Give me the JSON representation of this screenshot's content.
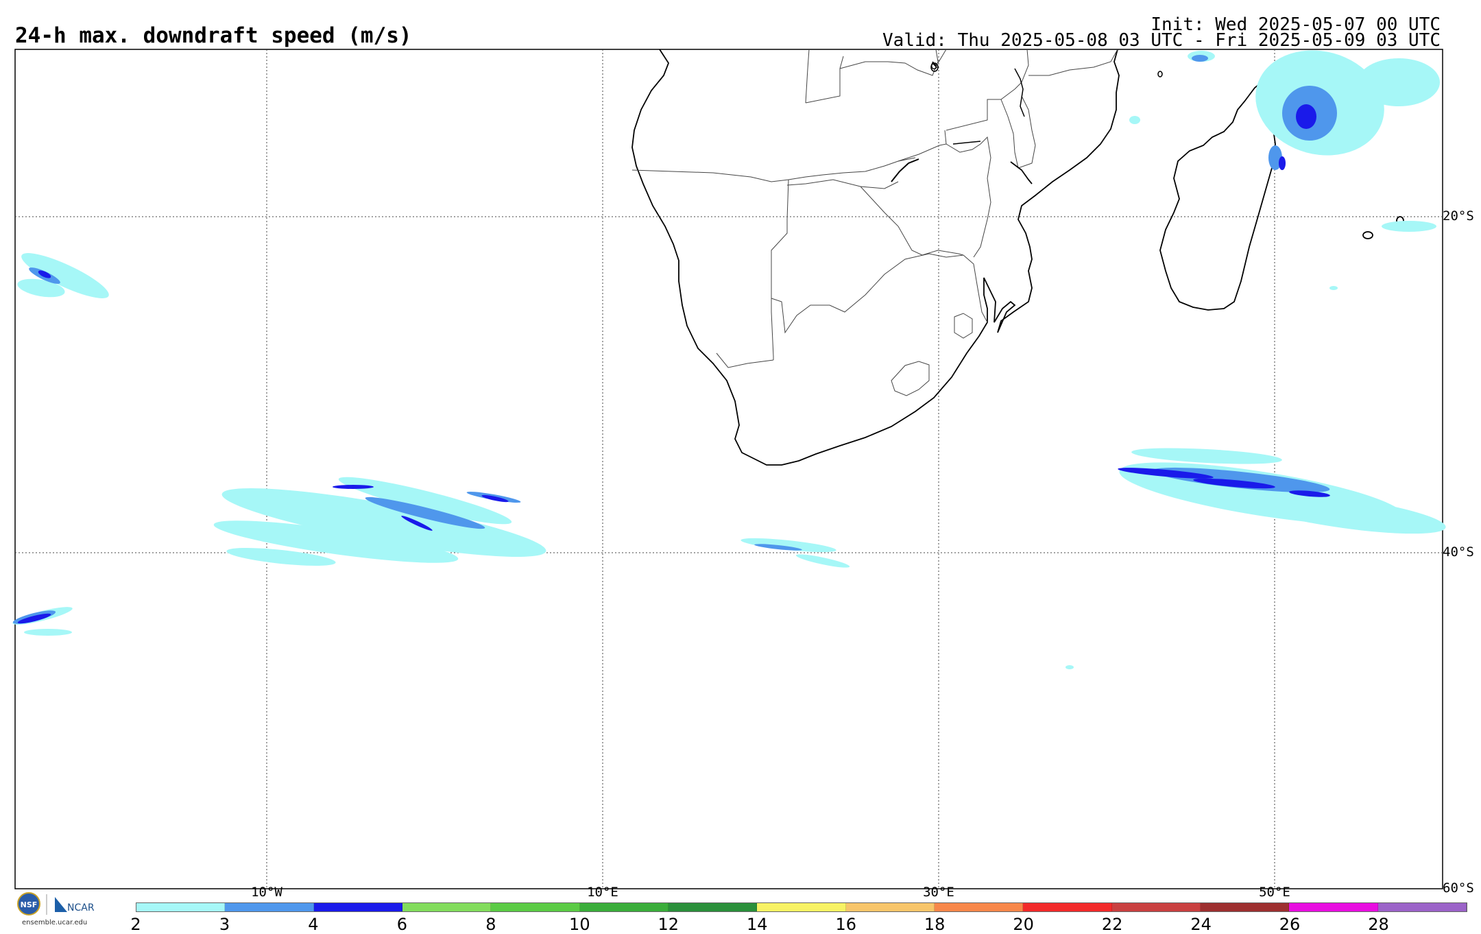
{
  "title": "24-h max. downdraft speed (m/s)",
  "init": "Init: Wed 2025-05-07 00 UTC",
  "valid": "Valid: Thu 2025-05-08 03 UTC - Fri 2025-05-09 03 UTC",
  "map": {
    "lon_labels": [
      "10°W",
      "10°E",
      "30°E",
      "50°E"
    ],
    "lat_labels": [
      "20°S",
      "40°S",
      "60°S"
    ],
    "grid": true,
    "region": "Southern Africa / South Atlantic / SW Indian Ocean"
  },
  "colorbar": {
    "ticks": [
      "2",
      "3",
      "4",
      "6",
      "8",
      "10",
      "12",
      "14",
      "16",
      "18",
      "20",
      "22",
      "24",
      "26",
      "28"
    ],
    "colors": [
      "#a6f7f7",
      "#4f97ec",
      "#1a1aea",
      "#82dc5c",
      "#5bcb45",
      "#3aad3a",
      "#2a8f3a",
      "#f7f264",
      "#f7c56a",
      "#f7874a",
      "#f22a2a",
      "#c94040",
      "#9d2f2f",
      "#e80ee0",
      "#9b63c8"
    ]
  },
  "logos": {
    "nsf": "NSF",
    "ncar": "NCAR",
    "url": "ensemble.ucar.edu"
  }
}
